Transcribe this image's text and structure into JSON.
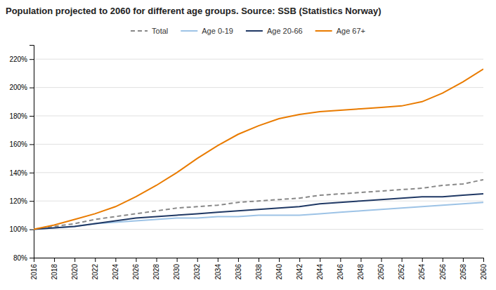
{
  "chart_data": {
    "type": "line",
    "title": "Population projected to 2060 for different age groups. Source: SSB (Statistics Norway)",
    "x": [
      2016,
      2018,
      2020,
      2022,
      2024,
      2026,
      2028,
      2030,
      2032,
      2034,
      2036,
      2038,
      2040,
      2042,
      2044,
      2046,
      2048,
      2050,
      2052,
      2054,
      2056,
      2058,
      2060
    ],
    "series": [
      {
        "name": "Total",
        "color": "#888888",
        "line_style": "dashed",
        "values": [
          100,
          102,
          104,
          107,
          109,
          111,
          113,
          115,
          116,
          117,
          119,
          120,
          121,
          122,
          124,
          125,
          126,
          127,
          128,
          129,
          131,
          132,
          135
        ]
      },
      {
        "name": "Age 0-19",
        "color": "#9DC3E6",
        "line_style": "solid",
        "values": [
          100,
          101,
          102,
          104,
          105,
          106,
          107,
          108,
          108,
          109,
          109,
          110,
          110,
          110,
          111,
          112,
          113,
          114,
          115,
          116,
          117,
          118,
          119
        ]
      },
      {
        "name": "Age 20-66",
        "color": "#1F3864",
        "line_style": "solid",
        "values": [
          100,
          101,
          102,
          104,
          106,
          108,
          109,
          110,
          111,
          112,
          113,
          114,
          115,
          116,
          118,
          119,
          120,
          121,
          122,
          123,
          123,
          124,
          125
        ]
      },
      {
        "name": "Age 67+",
        "color": "#E97B00",
        "line_style": "solid",
        "values": [
          100,
          103,
          107,
          111,
          116,
          123,
          131,
          140,
          150,
          159,
          167,
          173,
          178,
          181,
          183,
          184,
          185,
          186,
          187,
          190,
          196,
          204,
          213
        ]
      }
    ],
    "xlim": [
      2016,
      2060
    ],
    "xticks": [
      2016,
      2018,
      2020,
      2022,
      2024,
      2026,
      2028,
      2030,
      2032,
      2034,
      2036,
      2038,
      2040,
      2042,
      2044,
      2046,
      2048,
      2050,
      2052,
      2054,
      2056,
      2058,
      2060
    ],
    "ylim": [
      80,
      230
    ],
    "yticks": [
      {
        "value": 80,
        "label": "80%"
      },
      {
        "value": 100,
        "label": "100%"
      },
      {
        "value": 120,
        "label": "120%"
      },
      {
        "value": 140,
        "label": "140%"
      },
      {
        "value": 160,
        "label": "160%"
      },
      {
        "value": 180,
        "label": "180%"
      },
      {
        "value": 200,
        "label": "200%"
      },
      {
        "value": 220,
        "label": "220%"
      }
    ],
    "grid": true,
    "legend": "top"
  }
}
